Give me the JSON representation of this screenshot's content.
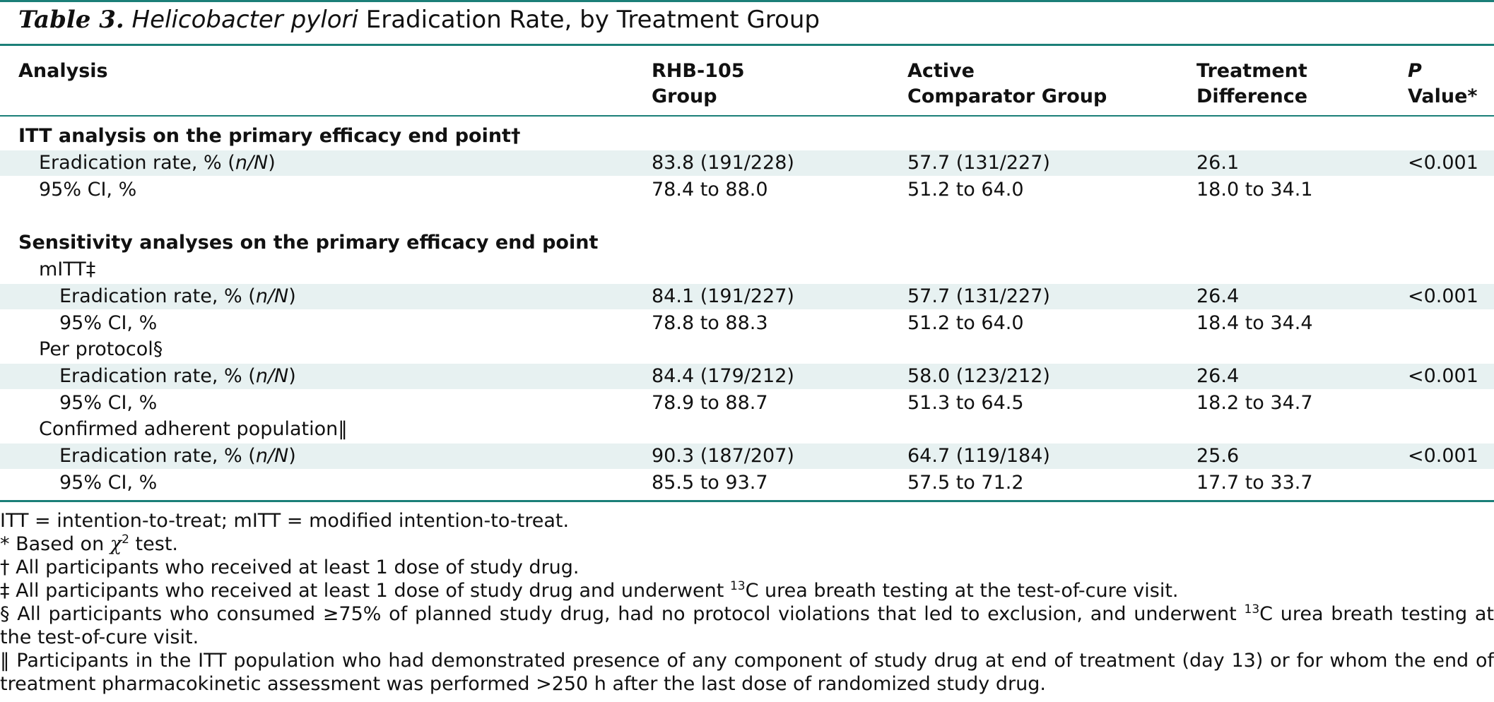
{
  "table": {
    "label": "Table 3.",
    "title_italic": "Helicobacter pylori",
    "title_rest": " Eradication Rate, by Treatment Group",
    "headers": {
      "analysis": "Analysis",
      "rhb_line1": "RHB-105",
      "rhb_line2": "Group",
      "active_line1": "Active",
      "active_line2": "Comparator Group",
      "diff_line1": "Treatment",
      "diff_line2": "Difference",
      "p_italic": "P",
      "p_rest": " Value*"
    },
    "rows": [
      {
        "label": "ITT analysis on the primary efficacy end point†",
        "kind": "section"
      },
      {
        "label": "Eradication rate, % (",
        "label_it": "n/N",
        "label_end": ")",
        "rhb": "83.8 (191/228)",
        "active": "57.7 (131/227)",
        "diff": "26.1",
        "p": "<0.001"
      },
      {
        "label": "95% CI, %",
        "rhb": "78.4 to 88.0",
        "active": "51.2 to 64.0",
        "diff": "18.0 to 34.1",
        "p": ""
      },
      {
        "label": "Sensitivity analyses on the primary efficacy end point",
        "kind": "section"
      },
      {
        "label": "mITT‡",
        "kind": "subgroup"
      },
      {
        "label": "Eradication rate, % (",
        "label_it": "n/N",
        "label_end": ")",
        "rhb": "84.1 (191/227)",
        "active": "57.7 (131/227)",
        "diff": "26.4",
        "p": "<0.001"
      },
      {
        "label": "95% CI, %",
        "rhb": "78.8 to 88.3",
        "active": "51.2 to 64.0",
        "diff": "18.4 to 34.4",
        "p": ""
      },
      {
        "label": "Per protocol§",
        "kind": "subgroup"
      },
      {
        "label": "Eradication rate, % (",
        "label_it": "n/N",
        "label_end": ")",
        "rhb": "84.4 (179/212)",
        "active": "58.0 (123/212)",
        "diff": "26.4",
        "p": "<0.001"
      },
      {
        "label": "95% CI, %",
        "rhb": "78.9 to 88.7",
        "active": "51.3 to 64.5",
        "diff": "18.2 to 34.7",
        "p": ""
      },
      {
        "label": "Confirmed adherent population‖",
        "kind": "subgroup"
      },
      {
        "label": "Eradication rate, % (",
        "label_it": "n/N",
        "label_end": ")",
        "rhb": "90.3 (187/207)",
        "active": "64.7 (119/184)",
        "diff": "25.6",
        "p": "<0.001"
      },
      {
        "label": "95% CI, %",
        "rhb": "85.5 to 93.7",
        "active": "57.5 to 71.2",
        "diff": "17.7 to 33.7",
        "p": ""
      }
    ]
  },
  "footnotes": {
    "abbrev": "ITT = intention-to-treat; mITT = modified intention-to-treat.",
    "star_pre": "* Based on ",
    "star_chi": "χ",
    "star_sup": "2",
    "star_post": " test.",
    "dagger": "† All participants who received at least 1 dose of study drug.",
    "ddagger_pre": "‡ All participants who received at least 1 dose of study drug and underwent ",
    "ddagger_sup": "13",
    "ddagger_post": "C urea breath testing at the test-of-cure visit.",
    "section_pre": "§ All participants who consumed ≥75% of planned study drug, had no protocol violations that led to exclusion, and underwent ",
    "section_sup": "13",
    "section_post": "C urea breath testing at the test-of-cure visit.",
    "parallel": "‖ Participants in the ITT population who had demonstrated presence of any component of study drug at end of treatment (day 13) or for whom the end of treatment pharmacokinetic assessment was performed >250 h after the last dose of randomized study drug."
  }
}
